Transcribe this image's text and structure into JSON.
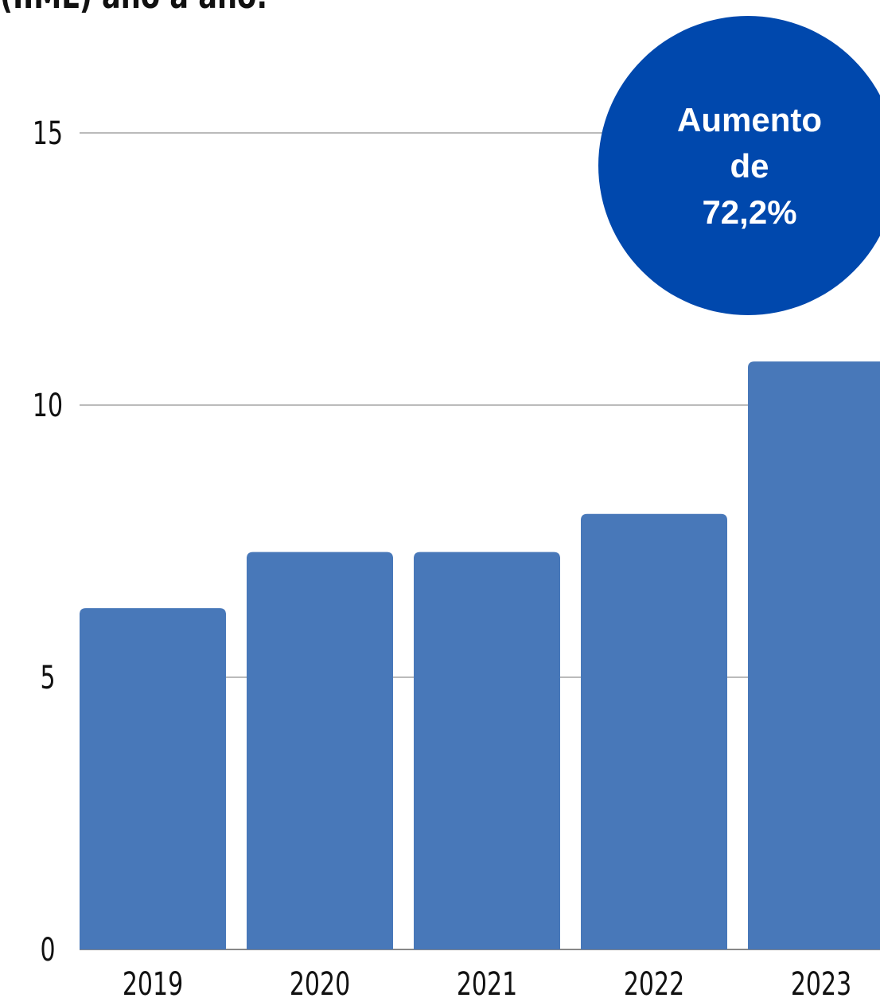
{
  "chart_data": {
    "type": "bar",
    "title": "(IIML) ano a ano:",
    "categories": [
      "2019",
      "2020",
      "2021",
      "2022",
      "2023"
    ],
    "values": [
      6.27,
      7.3,
      7.3,
      8,
      10.8
    ],
    "color": "#4878b9",
    "ylim": [
      0,
      15
    ],
    "yticks": [
      0,
      5,
      10,
      15
    ],
    "grid": true,
    "annotation": {
      "lines": [
        "Aumento",
        "de",
        "72,2%"
      ],
      "color": "#0048ad"
    }
  }
}
